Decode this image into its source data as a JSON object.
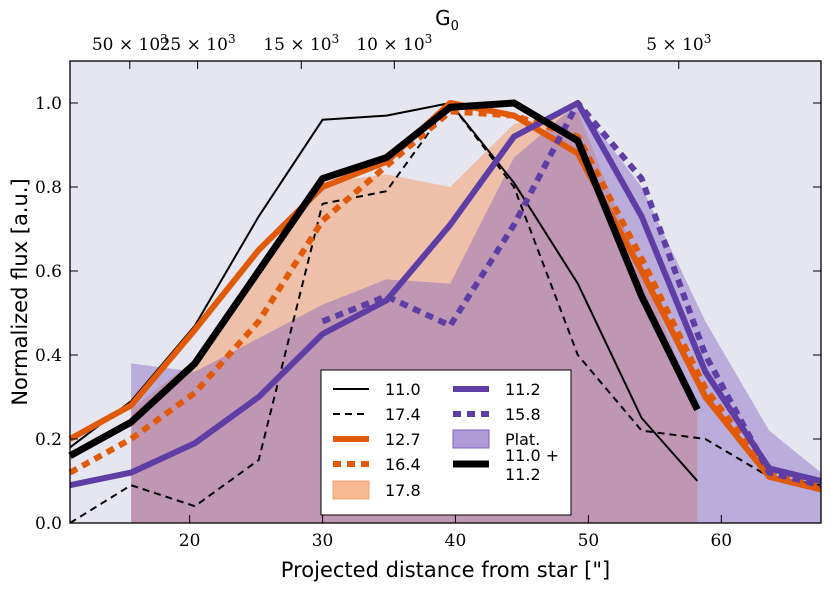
{
  "chart_data": {
    "type": "line",
    "title": "",
    "xlabel": "Projected distance from star [\"]",
    "ylabel": "Normalized flux [a.u.]",
    "xlim": [
      11,
      67.5
    ],
    "ylim": [
      0,
      1.1
    ],
    "xticks": [
      20,
      30,
      40,
      50,
      60
    ],
    "yticks": [
      0.0,
      0.2,
      0.4,
      0.6,
      0.8,
      1.0
    ],
    "ytick_labels": [
      "0.0",
      "0.2",
      "0.4",
      "0.6",
      "0.8",
      "1.0"
    ],
    "top_axis": {
      "label_main": "G",
      "label_sub": "0",
      "ticks": [
        {
          "x": 15.5,
          "mant": "50",
          "exp": "3"
        },
        {
          "x": 20.6,
          "mant": "25",
          "exp": "3"
        },
        {
          "x": 28.4,
          "mant": "15",
          "exp": "3"
        },
        {
          "x": 35.4,
          "mant": "10",
          "exp": "3"
        },
        {
          "x": 56.8,
          "mant": "5",
          "exp": "3"
        }
      ]
    },
    "fills": [
      {
        "name": "17.8",
        "color": "#f4a070",
        "opacity": 0.55,
        "x": [
          15.6,
          15.6,
          20.4,
          25.2,
          30.0,
          34.8,
          39.6,
          44.4,
          49.2,
          54.0,
          58.2,
          58.2
        ],
        "y": [
          0.0,
          0.27,
          0.39,
          0.59,
          0.81,
          0.83,
          0.8,
          0.95,
          0.98,
          0.6,
          0.27,
          0.0
        ]
      },
      {
        "name": "Plat.",
        "color": "#7e5fc0",
        "opacity": 0.42,
        "x": [
          15.6,
          15.6,
          20.4,
          25.2,
          30.0,
          34.8,
          39.6,
          44.4,
          49.2,
          54.0,
          58.8,
          63.6,
          67.5,
          67.5
        ],
        "y": [
          0.0,
          0.38,
          0.36,
          0.44,
          0.52,
          0.58,
          0.57,
          0.87,
          1.0,
          0.8,
          0.48,
          0.22,
          0.12,
          0.0
        ]
      }
    ],
    "series": [
      {
        "name": "11.0",
        "color": "#000000",
        "width": 2,
        "dash": "",
        "x": [
          11.0,
          15.6,
          20.4,
          25.2,
          30.0,
          34.8,
          39.6,
          44.4,
          49.2,
          54.0,
          58.2
        ],
        "y": [
          0.18,
          0.29,
          0.47,
          0.73,
          0.96,
          0.97,
          1.0,
          0.81,
          0.57,
          0.25,
          0.1
        ]
      },
      {
        "name": "17.4",
        "color": "#000000",
        "width": 2,
        "dash": "7,5",
        "x": [
          11.0,
          15.6,
          20.4,
          25.2,
          30.0,
          34.8,
          39.6,
          44.4,
          49.2,
          54.0,
          58.8,
          63.6,
          67.5
        ],
        "y": [
          0.0,
          0.09,
          0.04,
          0.15,
          0.76,
          0.79,
          1.0,
          0.8,
          0.4,
          0.22,
          0.2,
          0.11,
          0.09
        ]
      },
      {
        "name": "12.7",
        "color": "#e05a0a",
        "width": 6,
        "dash": "",
        "x": [
          11.0,
          15.6,
          20.4,
          25.2,
          30.0,
          34.8,
          39.6,
          44.4,
          49.2,
          54.0,
          58.8,
          63.6,
          67.5
        ],
        "y": [
          0.2,
          0.28,
          0.46,
          0.65,
          0.8,
          0.86,
          1.0,
          0.97,
          0.88,
          0.6,
          0.3,
          0.11,
          0.08
        ]
      },
      {
        "name": "16.4",
        "color": "#e05a0a",
        "width": 6,
        "dash": "8,6",
        "x": [
          11.0,
          15.6,
          20.4,
          25.2,
          30.0,
          34.8,
          39.6,
          44.4,
          49.2,
          54.0,
          58.8,
          63.6,
          67.5
        ],
        "y": [
          0.12,
          0.2,
          0.31,
          0.48,
          0.72,
          0.85,
          0.98,
          0.97,
          0.92,
          0.63,
          0.32,
          0.12,
          0.09
        ]
      },
      {
        "name": "11.2",
        "color": "#5e3ea5",
        "width": 6,
        "dash": "",
        "x": [
          11.0,
          15.6,
          20.4,
          25.2,
          30.0,
          34.8,
          39.6,
          44.4,
          49.2,
          54.0,
          58.8,
          63.6,
          67.5
        ],
        "y": [
          0.09,
          0.12,
          0.19,
          0.3,
          0.45,
          0.53,
          0.71,
          0.92,
          1.0,
          0.73,
          0.36,
          0.13,
          0.1
        ]
      },
      {
        "name": "15.8",
        "color": "#5e3ea5",
        "width": 6,
        "dash": "8,6",
        "x": [
          30.0,
          34.8,
          39.6,
          44.4,
          49.2,
          54.0,
          58.8,
          63.6,
          67.5
        ],
        "y": [
          0.48,
          0.54,
          0.47,
          0.71,
          1.0,
          0.82,
          0.4,
          0.12,
          0.09
        ]
      },
      {
        "name": "11.0 + 11.2",
        "color": "#000000",
        "width": 7,
        "dash": "",
        "x": [
          11.0,
          15.6,
          20.4,
          25.2,
          30.0,
          34.8,
          39.6,
          44.4,
          49.2,
          54.0,
          58.2
        ],
        "y": [
          0.16,
          0.24,
          0.38,
          0.6,
          0.82,
          0.87,
          0.99,
          1.0,
          0.91,
          0.54,
          0.27
        ]
      }
    ],
    "legend": {
      "placement": "lower-center",
      "entries": [
        {
          "label": "11.0",
          "kind": "line",
          "ref": "11.0"
        },
        {
          "label": "17.4",
          "kind": "line",
          "ref": "17.4"
        },
        {
          "label": "12.7",
          "kind": "line",
          "ref": "12.7"
        },
        {
          "label": "16.4",
          "kind": "line",
          "ref": "16.4"
        },
        {
          "label": "17.8",
          "kind": "patch",
          "ref": "17.8"
        },
        {
          "label": "11.2",
          "kind": "line",
          "ref": "11.2"
        },
        {
          "label": "15.8",
          "kind": "line",
          "ref": "15.8"
        },
        {
          "label": "Plat.",
          "kind": "patch",
          "ref": "Plat."
        },
        {
          "label": "11.0 +",
          "label2": "11.2",
          "kind": "line",
          "ref": "11.0 + 11.2"
        }
      ]
    },
    "colors": {
      "plot_bg": "#e6e6f0",
      "axis": "#000000"
    }
  }
}
